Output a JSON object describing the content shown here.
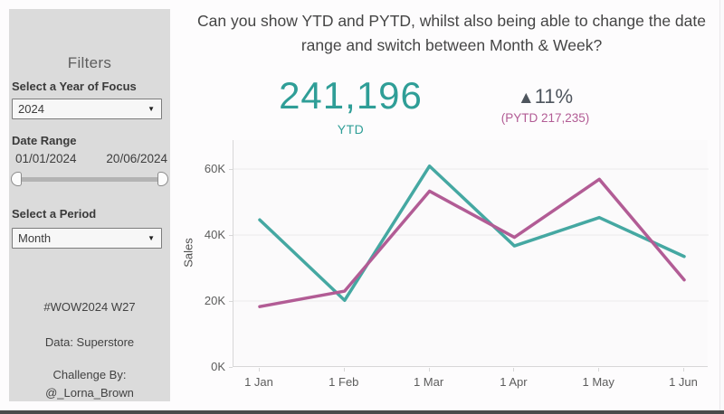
{
  "sidebar": {
    "title": "Filters",
    "year_filter": {
      "label": "Select a Year of Focus",
      "value": "2024"
    },
    "date_range": {
      "label": "Date Range",
      "start_date": "01/01/2024",
      "end_date": "20/06/2024"
    },
    "period_filter": {
      "label": "Select a Period",
      "value": "Month"
    },
    "footer": {
      "hashtag": "#WOW2024 W27",
      "data_source": "Data: Superstore",
      "challenge_by_line1": "Challenge By:",
      "challenge_by_line2": "@_Lorna_Brown"
    }
  },
  "header": {
    "title": "Can you show YTD and PYTD, whilst also being able to change the date range and switch between Month & Week?"
  },
  "kpi": {
    "ytd_value": "241,196",
    "ytd_label": "YTD",
    "delta_arrow": "▲",
    "delta_value": "11%",
    "pytd_label": "(PYTD 217,235)"
  },
  "colors": {
    "ytd_teal": "#2f9e97",
    "ytd_line": "#45a8a2",
    "pytd_purple": "#b25c95",
    "delta_gray": "#4e555d",
    "sidebar_bg": "#dbdbdb",
    "gridline": "#ebebeb"
  },
  "chart_data": {
    "type": "line",
    "x": [
      "1 Jan",
      "1 Feb",
      "1 Mar",
      "1 Apr",
      "1 May",
      "1 Jun"
    ],
    "series": [
      {
        "name": "YTD",
        "color": "#45a8a2",
        "values": [
          44.6,
          20.2,
          60.9,
          36.7,
          45.3,
          33.5
        ]
      },
      {
        "name": "PYTD",
        "color": "#b25c95",
        "values": [
          18.3,
          23.0,
          53.3,
          39.3,
          56.9,
          26.4
        ]
      }
    ],
    "unit": "K (thousands)",
    "ylabel": "Sales",
    "yticks": [
      0,
      20,
      40,
      60
    ],
    "ytick_labels": [
      "0K",
      "20K",
      "40K",
      "60K"
    ],
    "ylim": [
      0,
      68.8
    ],
    "grid": true,
    "legend": "none"
  }
}
